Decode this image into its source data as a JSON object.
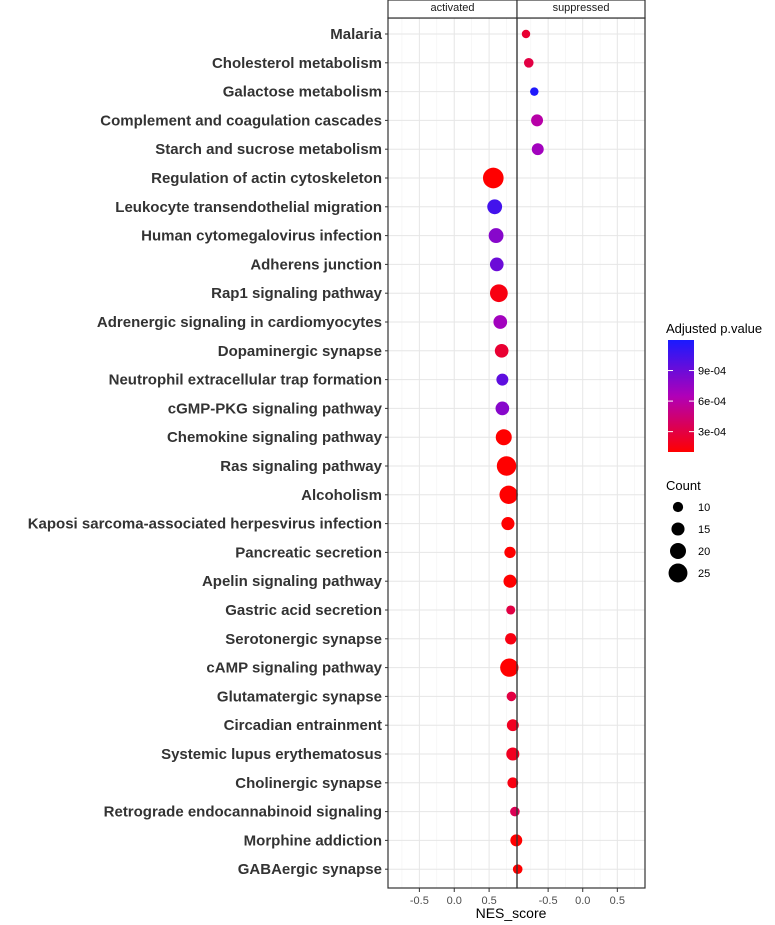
{
  "chart_data": {
    "type": "scatter",
    "xlabel": "NES_score",
    "panels": [
      "activated",
      "suppressed"
    ],
    "xlim": [
      -0.95,
      0.9
    ],
    "xticks": [
      -0.5,
      0.0,
      0.5
    ],
    "xtick_labels": [
      "-0.5",
      "0.0",
      "0.5"
    ],
    "pathways": [
      {
        "name": "Malaria",
        "panel": "suppressed",
        "nes": -0.82,
        "count": 7,
        "padj": 0.00025
      },
      {
        "name": "Cholesterol metabolism",
        "panel": "suppressed",
        "nes": -0.78,
        "count": 9,
        "padj": 0.0003
      },
      {
        "name": "Galactose metabolism",
        "panel": "suppressed",
        "nes": -0.7,
        "count": 7,
        "padj": 0.00118
      },
      {
        "name": "Complement and coagulation cascades",
        "panel": "suppressed",
        "nes": -0.66,
        "count": 13,
        "padj": 0.0006
      },
      {
        "name": "Starch and sucrose metabolism",
        "panel": "suppressed",
        "nes": -0.65,
        "count": 13,
        "padj": 0.0007
      },
      {
        "name": "Regulation of actin cytoskeleton",
        "panel": "activated",
        "nes": 0.56,
        "count": 28,
        "padj": 0.0001
      },
      {
        "name": "Leukocyte transendothelial migration",
        "panel": "activated",
        "nes": 0.58,
        "count": 18,
        "padj": 0.00105
      },
      {
        "name": "Human cytomegalovirus infection",
        "panel": "activated",
        "nes": 0.6,
        "count": 18,
        "padj": 0.0008
      },
      {
        "name": "Adherens junction",
        "panel": "activated",
        "nes": 0.61,
        "count": 16,
        "padj": 0.0009
      },
      {
        "name": "Rap1 signaling pathway",
        "panel": "activated",
        "nes": 0.64,
        "count": 23,
        "padj": 0.00015
      },
      {
        "name": "Adrenergic signaling in cardiomyocytes",
        "panel": "activated",
        "nes": 0.66,
        "count": 16,
        "padj": 0.0007
      },
      {
        "name": "Dopaminergic synapse",
        "panel": "activated",
        "nes": 0.68,
        "count": 16,
        "padj": 0.00025
      },
      {
        "name": "Neutrophil extracellular trap formation",
        "panel": "activated",
        "nes": 0.69,
        "count": 13,
        "padj": 0.00095
      },
      {
        "name": "cGMP-PKG signaling pathway",
        "panel": "activated",
        "nes": 0.69,
        "count": 16,
        "padj": 0.0008
      },
      {
        "name": "Chemokine signaling pathway",
        "panel": "activated",
        "nes": 0.71,
        "count": 20,
        "padj": 0.0001
      },
      {
        "name": "Ras signaling pathway",
        "panel": "activated",
        "nes": 0.75,
        "count": 26,
        "padj": 0.0001
      },
      {
        "name": "Alcoholism",
        "panel": "activated",
        "nes": 0.78,
        "count": 24,
        "padj": 0.0001
      },
      {
        "name": "Kaposi sarcoma-associated herpesvirus infection",
        "panel": "activated",
        "nes": 0.77,
        "count": 15,
        "padj": 0.0001
      },
      {
        "name": "Pancreatic secretion",
        "panel": "activated",
        "nes": 0.8,
        "count": 12,
        "padj": 0.0001
      },
      {
        "name": "Apelin signaling pathway",
        "panel": "activated",
        "nes": 0.8,
        "count": 15,
        "padj": 0.0001
      },
      {
        "name": "Gastric acid secretion",
        "panel": "activated",
        "nes": 0.81,
        "count": 8,
        "padj": 0.0003
      },
      {
        "name": "Serotonergic synapse",
        "panel": "activated",
        "nes": 0.81,
        "count": 12,
        "padj": 0.00015
      },
      {
        "name": "cAMP signaling pathway",
        "panel": "activated",
        "nes": 0.79,
        "count": 24,
        "padj": 0.0001
      },
      {
        "name": "Glutamatergic synapse",
        "panel": "activated",
        "nes": 0.82,
        "count": 9,
        "padj": 0.0003
      },
      {
        "name": "Circadian entrainment",
        "panel": "activated",
        "nes": 0.84,
        "count": 13,
        "padj": 0.0002
      },
      {
        "name": "Systemic lupus erythematosus",
        "panel": "activated",
        "nes": 0.84,
        "count": 15,
        "padj": 0.0002
      },
      {
        "name": "Cholinergic synapse",
        "panel": "activated",
        "nes": 0.84,
        "count": 11,
        "padj": 0.00015
      },
      {
        "name": "Retrograde endocannabinoid signaling",
        "panel": "activated",
        "nes": 0.87,
        "count": 9,
        "padj": 0.00035
      },
      {
        "name": "Morphine addiction",
        "panel": "activated",
        "nes": 0.89,
        "count": 13,
        "padj": 0.0001
      },
      {
        "name": "GABAergic synapse",
        "panel": "activated",
        "nes": 0.91,
        "count": 9,
        "padj": 0.0001
      }
    ],
    "color_legend": {
      "title": "Adjusted p.value",
      "ticks": [
        0.0003,
        0.0006,
        0.0009
      ],
      "tick_labels": [
        "3e-04",
        "6e-04",
        "9e-04"
      ],
      "min": 0.0001,
      "max": 0.0012,
      "low_color": "#ff0000",
      "mid_color": "#b000b8",
      "high_color": "#1a1aff"
    },
    "size_legend": {
      "title": "Count",
      "values": [
        10,
        15,
        20,
        25
      ],
      "labels": [
        "10",
        "15",
        "20",
        "25"
      ]
    }
  }
}
